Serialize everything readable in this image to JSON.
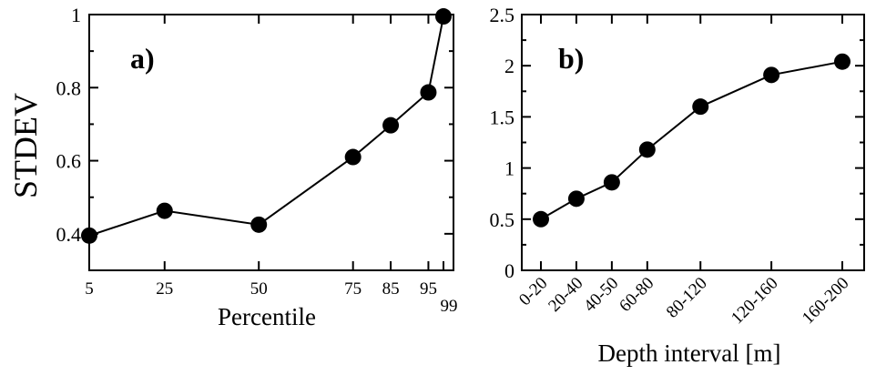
{
  "chart_data": [
    {
      "type": "line",
      "panel_label": "a)",
      "xlabel": "Percentile",
      "ylabel": "STDEV",
      "x": [
        5,
        25,
        50,
        75,
        85,
        95,
        99
      ],
      "x_tick_labels": [
        "5",
        "25",
        "50",
        "75",
        "85",
        "95",
        "99"
      ],
      "y_tick_labels": [
        "0.4",
        "0.6",
        "0.8",
        "1"
      ],
      "y_ticks": [
        0.4,
        0.6,
        0.8,
        1.0
      ],
      "series": [
        {
          "values": [
            0.395,
            0.463,
            0.425,
            0.61,
            0.697,
            0.787,
            0.995
          ]
        }
      ],
      "xlim": [
        0,
        100
      ],
      "ylim": [
        0.3,
        1.0
      ],
      "grid": false,
      "marker": "filled-circle",
      "color": "#000000"
    },
    {
      "type": "line",
      "panel_label": "b)",
      "xlabel": "Depth interval [m]",
      "ylabel": "",
      "categories": [
        "0-20",
        "20-40",
        "40-50",
        "60-80",
        "80-120",
        "120-160",
        "160-200"
      ],
      "x": [
        10,
        30,
        50,
        70,
        100,
        140,
        180
      ],
      "y_tick_labels": [
        "0",
        "0.5",
        "1",
        "1.5",
        "2",
        "2.5"
      ],
      "y_ticks": [
        0,
        0.5,
        1.0,
        1.5,
        2.0,
        2.5
      ],
      "series": [
        {
          "values": [
            0.5,
            0.7,
            0.86,
            1.18,
            1.6,
            1.91,
            2.04
          ]
        }
      ],
      "xlim": [
        0,
        200
      ],
      "ylim": [
        0,
        2.5
      ],
      "grid": false,
      "marker": "filled-circle",
      "color": "#000000"
    }
  ]
}
